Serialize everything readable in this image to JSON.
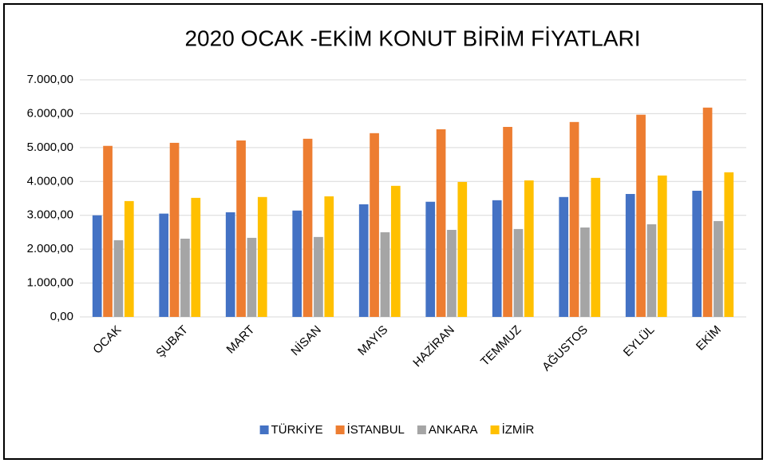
{
  "chart_data": {
    "type": "bar",
    "title": "2020 OCAK -EKİM KONUT BİRİM FİYATLARI",
    "categories": [
      "OCAK",
      "ŞUBAT",
      "MART",
      "NİSAN",
      "MAYIS",
      "HAZİRAN",
      "TEMMUZ",
      "AĞUSTOS",
      "EYLÜL",
      "EKİM"
    ],
    "series": [
      {
        "name": "TÜRKİYE",
        "color": "#4472c4",
        "values": [
          3000,
          3050,
          3090,
          3140,
          3325,
          3400,
          3445,
          3540,
          3630,
          3725
        ]
      },
      {
        "name": "İSTANBUL",
        "color": "#ed7d31",
        "values": [
          5050,
          5140,
          5210,
          5260,
          5425,
          5540,
          5610,
          5755,
          5970,
          6180
        ]
      },
      {
        "name": "ANKARA",
        "color": "#a5a5a5",
        "values": [
          2265,
          2310,
          2335,
          2360,
          2500,
          2570,
          2595,
          2640,
          2735,
          2830
        ]
      },
      {
        "name": "İZMİR",
        "color": "#ffc000",
        "values": [
          3420,
          3515,
          3540,
          3560,
          3870,
          3985,
          4030,
          4105,
          4175,
          4270
        ]
      }
    ],
    "ylim": [
      0,
      7000
    ],
    "yticks": [
      {
        "value": 0,
        "label": "0,00"
      },
      {
        "value": 1000,
        "label": "1.000,00"
      },
      {
        "value": 2000,
        "label": "2.000,00"
      },
      {
        "value": 3000,
        "label": "3.000,00"
      },
      {
        "value": 4000,
        "label": "4.000,00"
      },
      {
        "value": 5000,
        "label": "5.000,00"
      },
      {
        "value": 6000,
        "label": "6.000,00"
      },
      {
        "value": 7000,
        "label": "7.000,00"
      }
    ],
    "grid": true,
    "legend": "bottom"
  }
}
